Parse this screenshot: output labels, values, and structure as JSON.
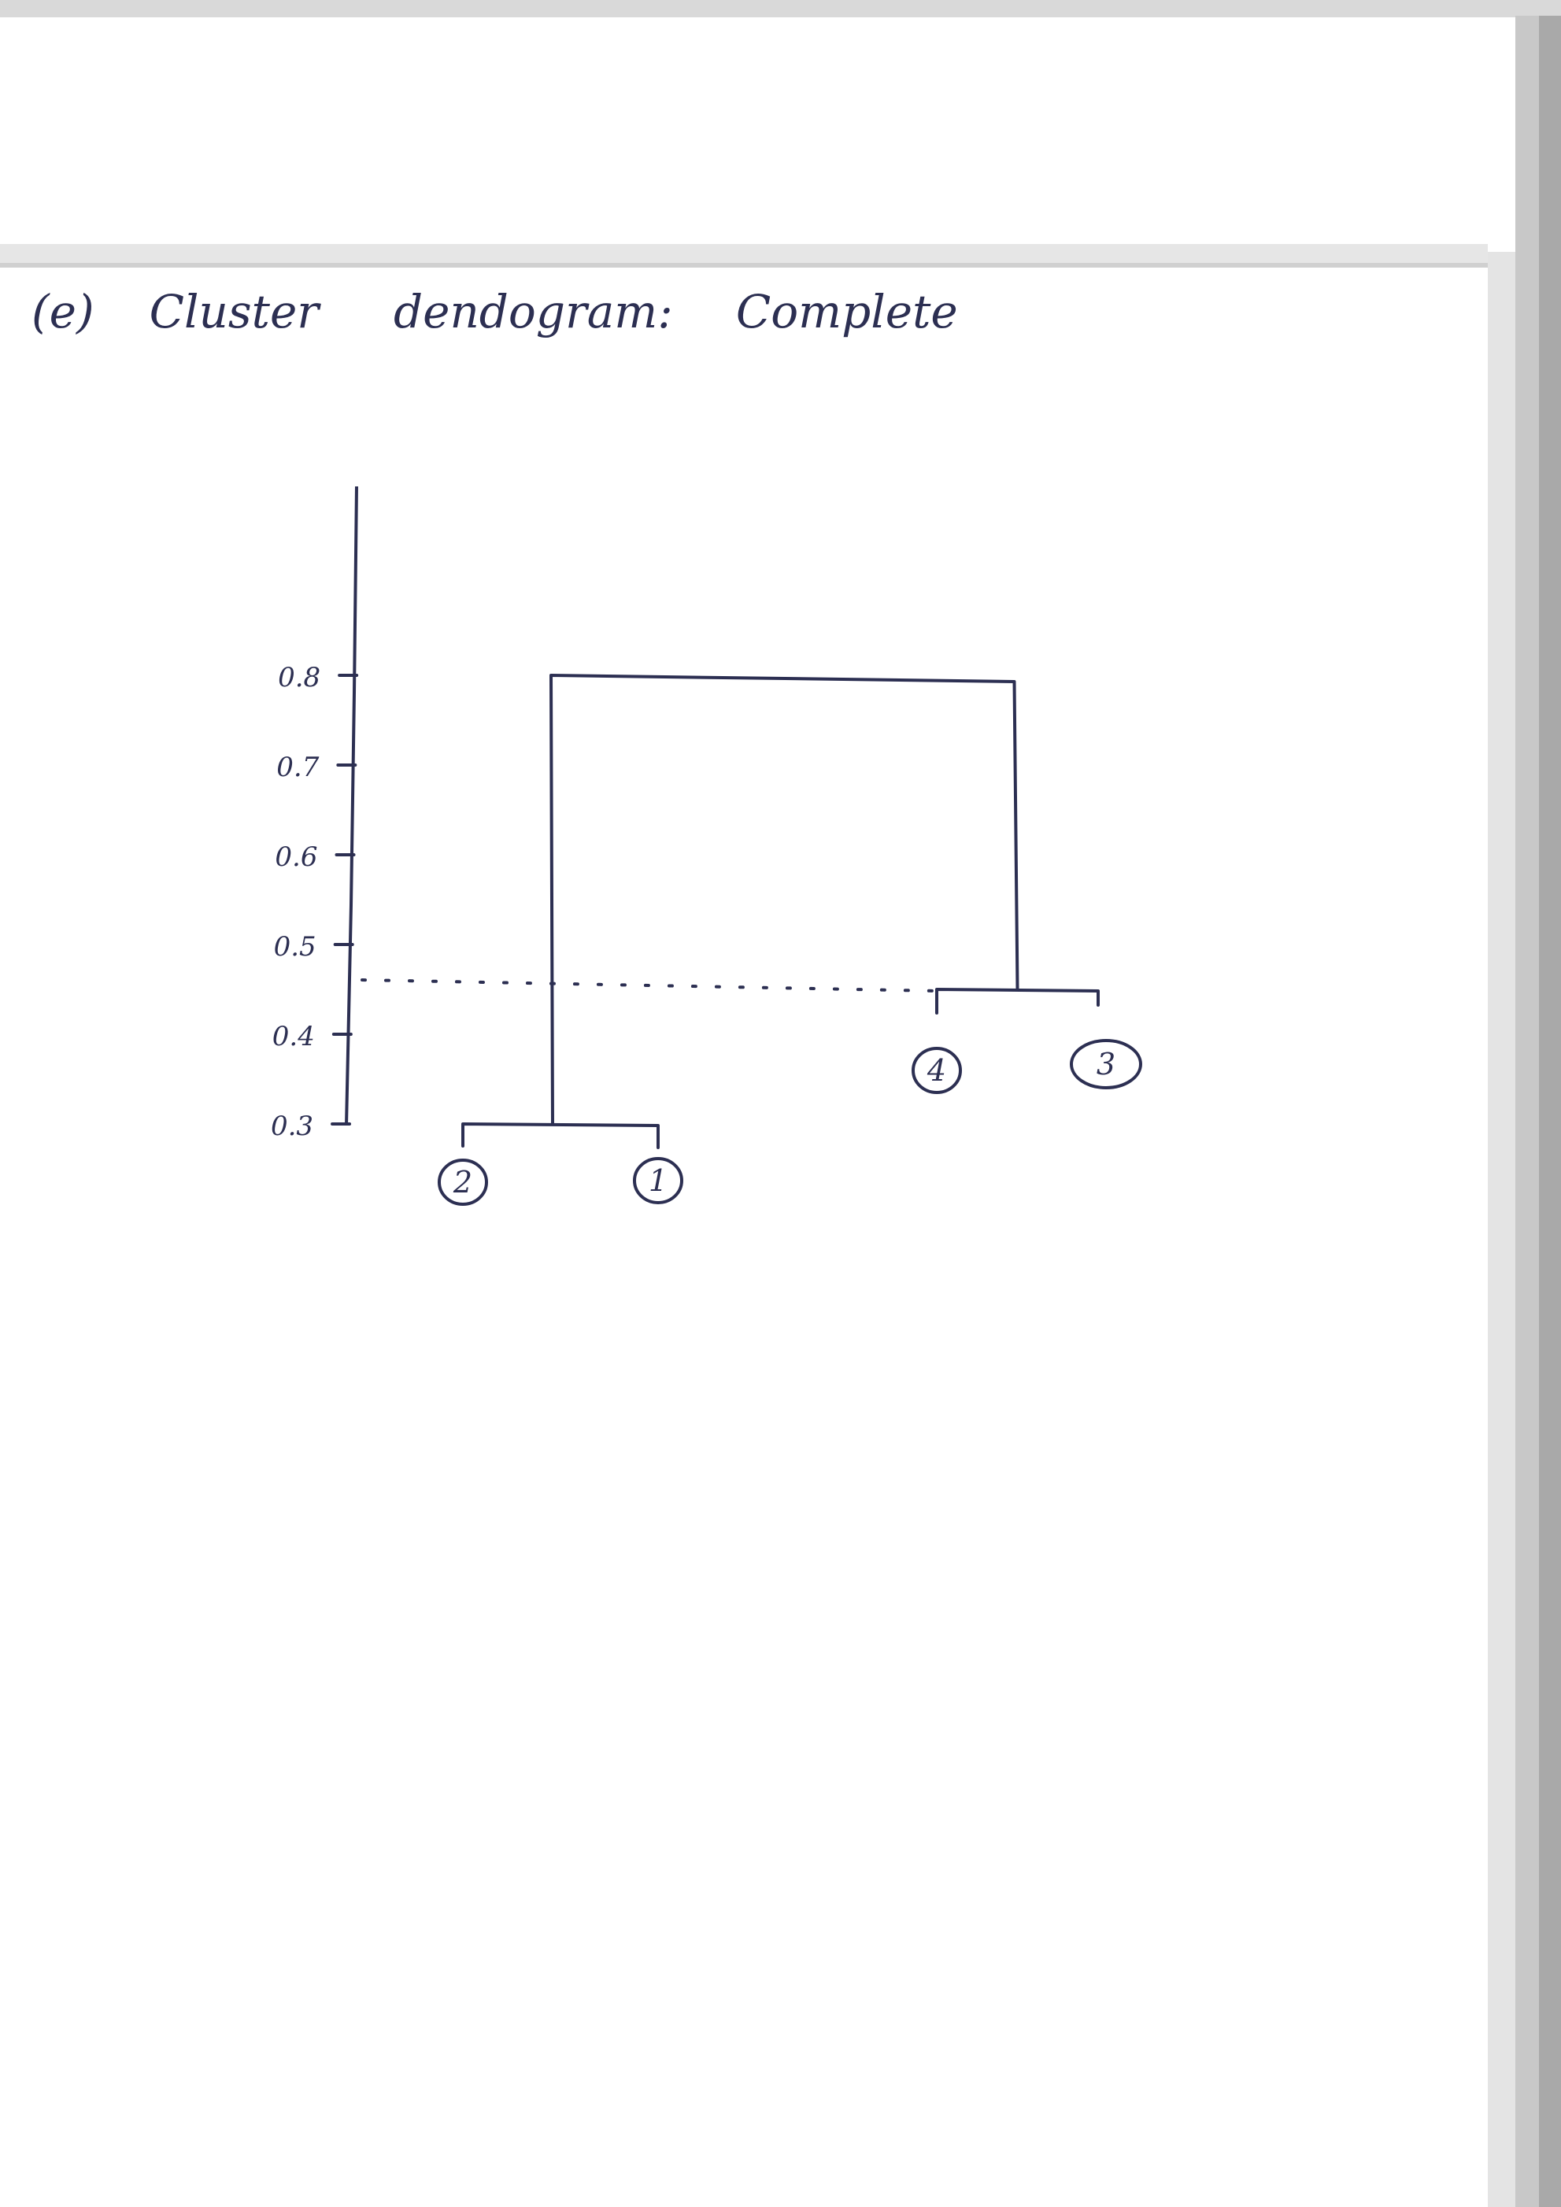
{
  "page": {
    "item_label": "(e)",
    "heading_word_1": "Cluster",
    "heading_word_2": "dendogram:",
    "heading_word_3": "Complete"
  },
  "colors": {
    "ink": "#2c2f52",
    "paper": "#ffffff",
    "paper_edge": "#cfcfcf"
  },
  "chart_data": {
    "type": "dendrogram",
    "title": "Cluster dendogram: Complete",
    "yticks": [
      "0.3",
      "0.4",
      "0.5",
      "0.6",
      "0.7",
      "0.8"
    ],
    "y_tick_values": [
      0.3,
      0.4,
      0.5,
      0.6,
      0.7,
      0.8
    ],
    "leaves": [
      "2",
      "1",
      "4",
      "3"
    ],
    "merges": [
      {
        "left": "2",
        "right": "1",
        "height": 0.3
      },
      {
        "left": "4",
        "right": "3",
        "height": 0.45
      },
      {
        "left": "(2,1)",
        "right": "(4,3)",
        "height": 0.8
      }
    ],
    "cut_height": 0.45,
    "cut_line": "dotted"
  }
}
